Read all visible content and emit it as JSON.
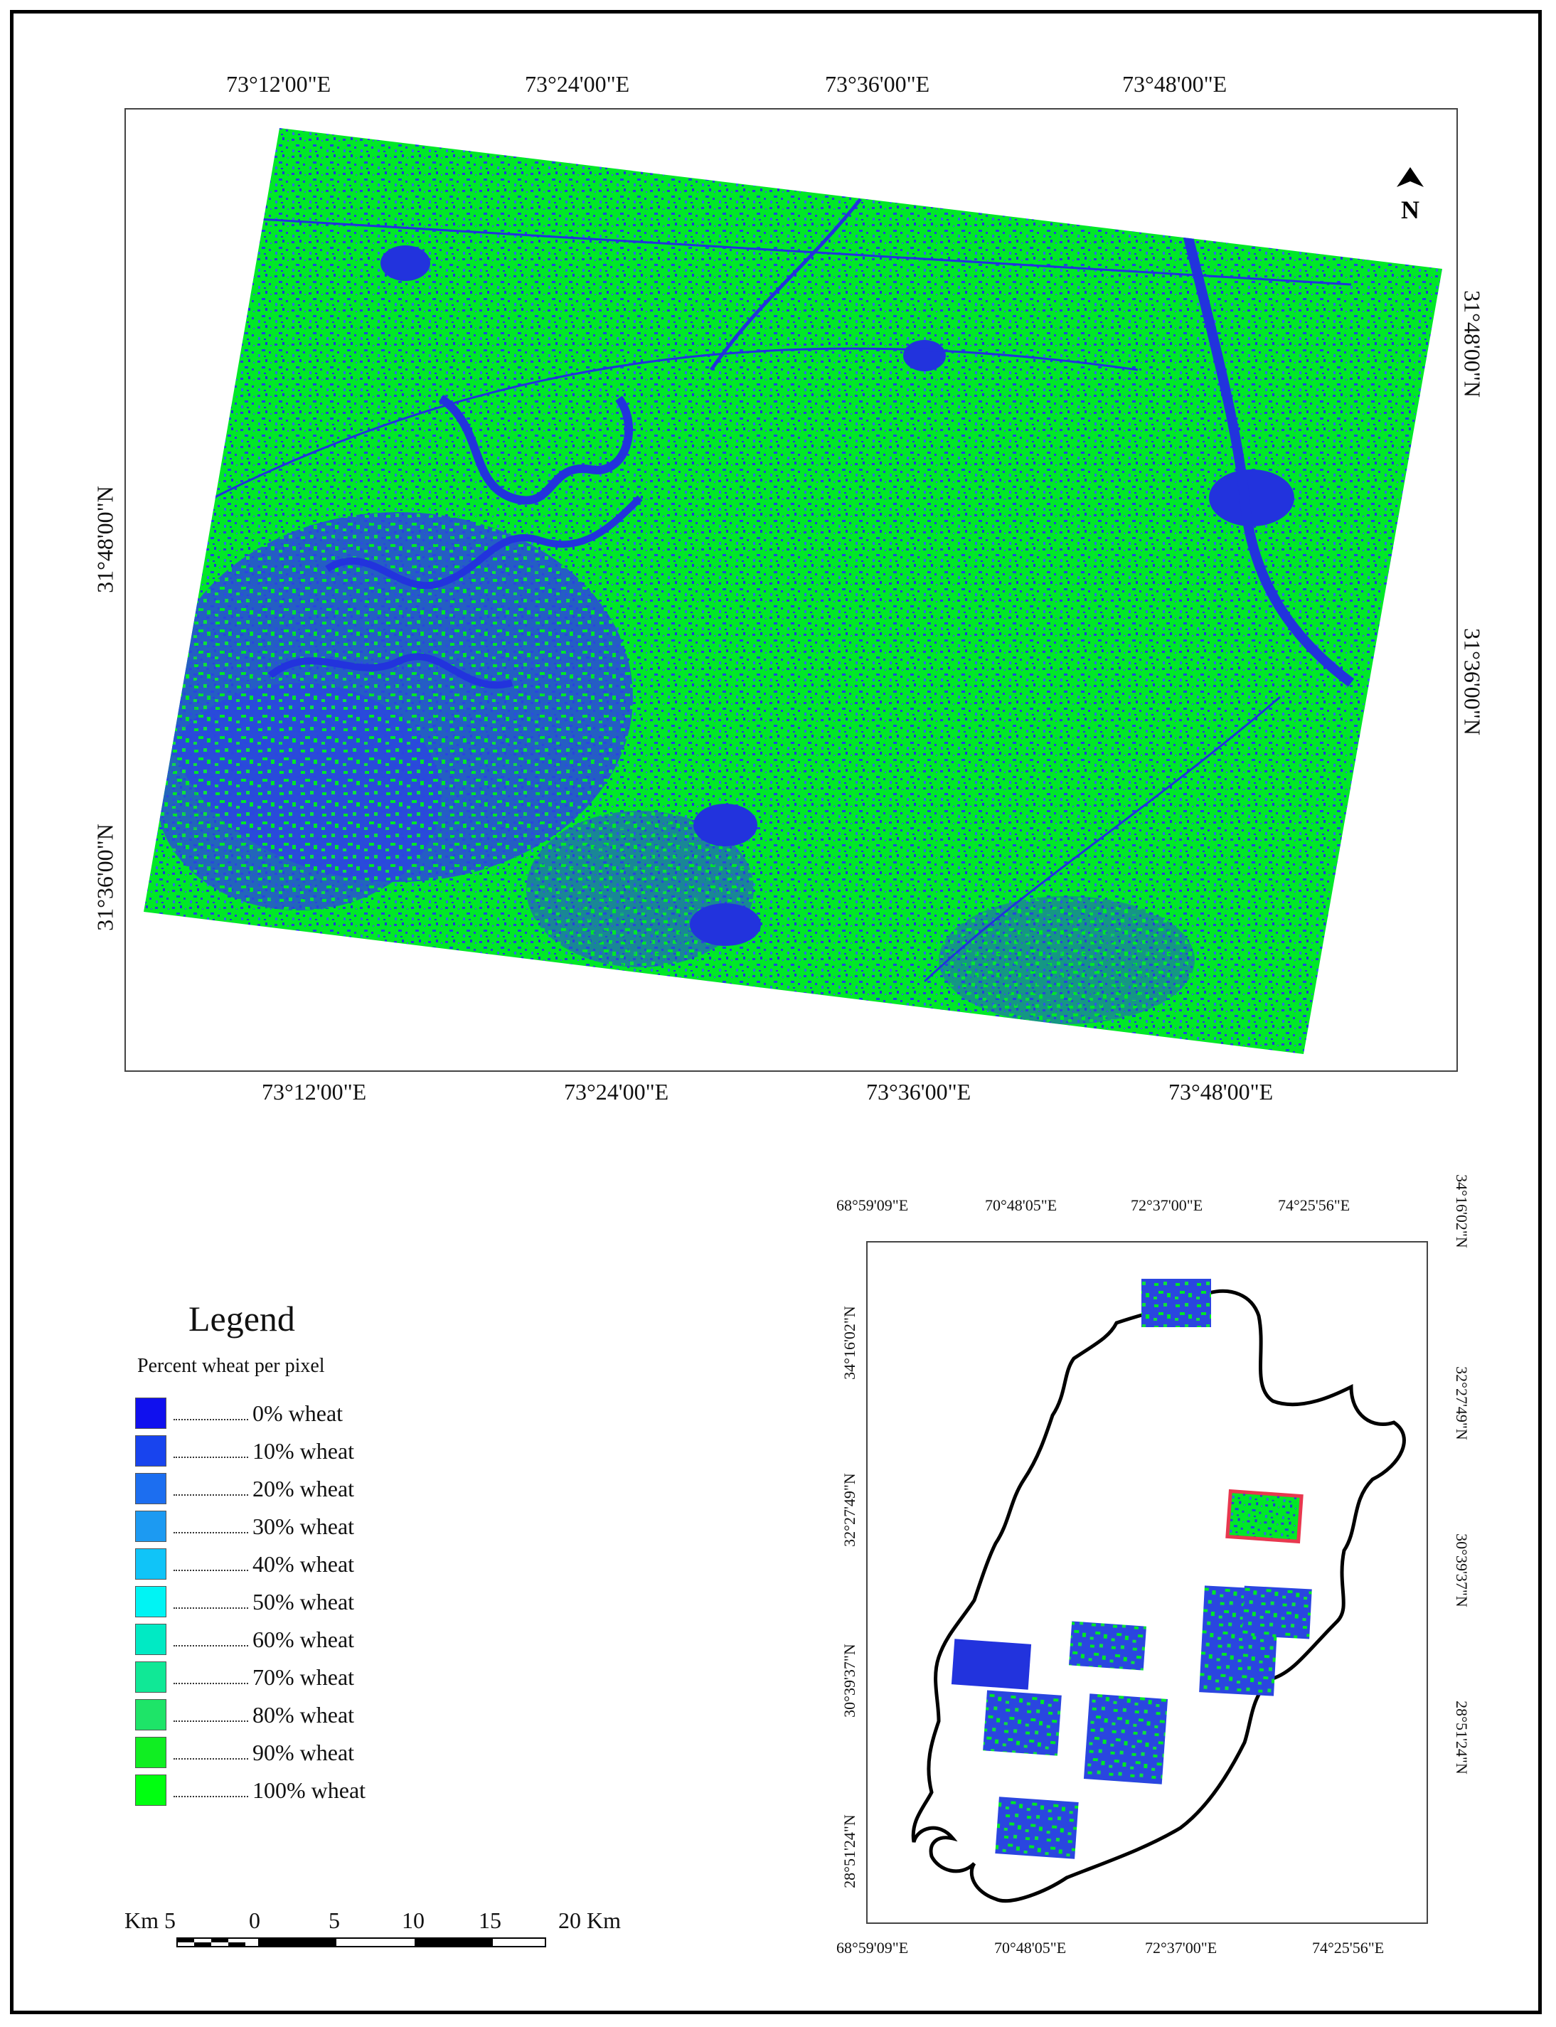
{
  "main_map": {
    "top_lon_labels": [
      "73°12'00\"E",
      "73°24'00\"E",
      "73°36'00\"E",
      "73°48'00\"E"
    ],
    "bottom_lon_labels": [
      "73°12'00\"E",
      "73°24'00\"E",
      "73°36'00\"E",
      "73°48'00\"E"
    ],
    "left_lat_labels": [
      "31°48'00\"N",
      "31°36'00\"N"
    ],
    "right_lat_labels": [
      "31°48'00\"N",
      "31°36'00\"N"
    ],
    "north_label": "N",
    "colors": {
      "wheat": "#00ee22",
      "non_wheat": "#2233dd"
    }
  },
  "legend": {
    "title": "Legend",
    "subtitle": "Percent wheat per pixel",
    "items": [
      {
        "label": "0% wheat",
        "color": "#1010ee"
      },
      {
        "label": "10% wheat",
        "color": "#1844ee"
      },
      {
        "label": "20% wheat",
        "color": "#1c6ef0"
      },
      {
        "label": "30% wheat",
        "color": "#1c9af2"
      },
      {
        "label": "40% wheat",
        "color": "#10c4f8"
      },
      {
        "label": "50% wheat",
        "color": "#00f4f4"
      },
      {
        "label": "60% wheat",
        "color": "#00eac4"
      },
      {
        "label": "70% wheat",
        "color": "#10e896"
      },
      {
        "label": "80% wheat",
        "color": "#1ee468"
      },
      {
        "label": "90% wheat",
        "color": "#10ee22"
      },
      {
        "label": "100% wheat",
        "color": "#00ff10"
      }
    ]
  },
  "scale_bar": {
    "labels": [
      "Km 5",
      "0",
      "5",
      "10",
      "15",
      "20 Km"
    ]
  },
  "inset_map": {
    "top_lon_labels": [
      "68°59'09\"E",
      "70°48'05\"E",
      "72°37'00\"E",
      "74°25'56\"E"
    ],
    "bottom_lon_labels": [
      "68°59'09\"E",
      "70°48'05\"E",
      "72°37'00\"E",
      "74°25'56\"E"
    ],
    "left_lat_labels": [
      "34°16'02\"N",
      "32°27'49\"N",
      "30°39'37\"N",
      "28°51'24\"N"
    ],
    "right_lat_labels": [
      "34°16'02\"N",
      "32°27'49\"N",
      "30°39'37\"N",
      "28°51'24\"N"
    ],
    "highlight_color": "#e8384f"
  }
}
